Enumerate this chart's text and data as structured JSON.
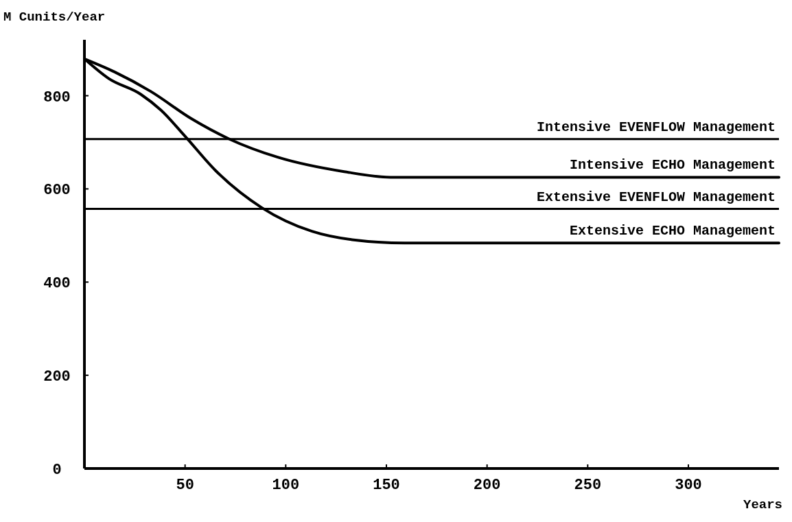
{
  "chart_data": {
    "type": "line",
    "ylabel": "M Cunits/Year",
    "xlabel": "Years",
    "xlim": [
      0,
      345
    ],
    "ylim": [
      0,
      920
    ],
    "xticks": [
      50,
      100,
      150,
      200,
      250,
      300
    ],
    "yticks": [
      0,
      200,
      400,
      600,
      800
    ],
    "grid": false,
    "marker": "none",
    "line_style": "solid",
    "series": [
      {
        "name": "Intensive ECHO Management",
        "color": "#000000",
        "x": [
          0,
          15,
          33,
          53,
          72,
          96,
          129,
          152,
          345
        ],
        "values": [
          879,
          851,
          809,
          751,
          707,
          668,
          637,
          625,
          625
        ]
      },
      {
        "name": "Extensive ECHO Management",
        "color": "#000000",
        "x": [
          0,
          12,
          28,
          38,
          50,
          65,
          88,
          113,
          133,
          159,
          345
        ],
        "values": [
          879,
          837,
          803,
          769,
          713,
          640,
          560,
          509,
          491,
          484,
          484
        ]
      }
    ],
    "ref_lines": [
      {
        "axis": "y",
        "value": 707,
        "label": "Intensive EVENFLOW Management",
        "color": "#000000",
        "line_style": "solid"
      },
      {
        "axis": "y",
        "value": 557,
        "label": "Extensive EVENFLOW Management",
        "color": "#000000",
        "line_style": "solid"
      }
    ]
  }
}
